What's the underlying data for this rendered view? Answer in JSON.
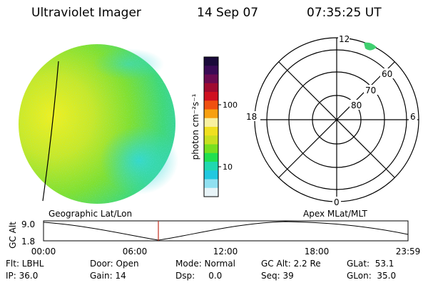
{
  "header": {
    "title": "Ultraviolet Imager",
    "date": "14 Sep 07",
    "time": "07:35:25 UT"
  },
  "colorbar": {
    "label": "photon cm⁻²s⁻¹",
    "ticks": [
      "100",
      "10"
    ],
    "colors_top_to_bottom": [
      "#1a0a3a",
      "#3a0a55",
      "#6a0a50",
      "#a00a30",
      "#d01020",
      "#f05010",
      "#f8a010",
      "#f8f0a0",
      "#f0e020",
      "#c8e020",
      "#78e020",
      "#20e050",
      "#20d8b0",
      "#20c8e0",
      "#90e0f0",
      "#e8f4f8"
    ]
  },
  "polar": {
    "top_label": "12",
    "bottom_label": "0",
    "left_label": "18",
    "right_label": "6",
    "lat_labels": [
      "60",
      "70",
      "80"
    ]
  },
  "timeline": {
    "left_title": "Geographic Lat/Lon",
    "right_title": "Apex MLat/MLT",
    "y_axis_label": "GC Alt",
    "y_ticks": [
      "9.0",
      "1.8"
    ],
    "x_ticks": [
      "00:00",
      "06:00",
      "12:00",
      "18:00",
      "23:59"
    ],
    "marker_color": "#c03020"
  },
  "info": {
    "flt": "Flt: LBHL",
    "ip": "IP: 36.0",
    "door": "Door: Open",
    "gain": "Gain: 14",
    "mode": "Mode: Normal",
    "dsp": "Dsp:     0.0",
    "gc_alt": "GC Alt: 2.2 Re",
    "seq": "Seq: 39",
    "glat": "GLat:  53.1",
    "glon": "GLon:  35.0"
  }
}
